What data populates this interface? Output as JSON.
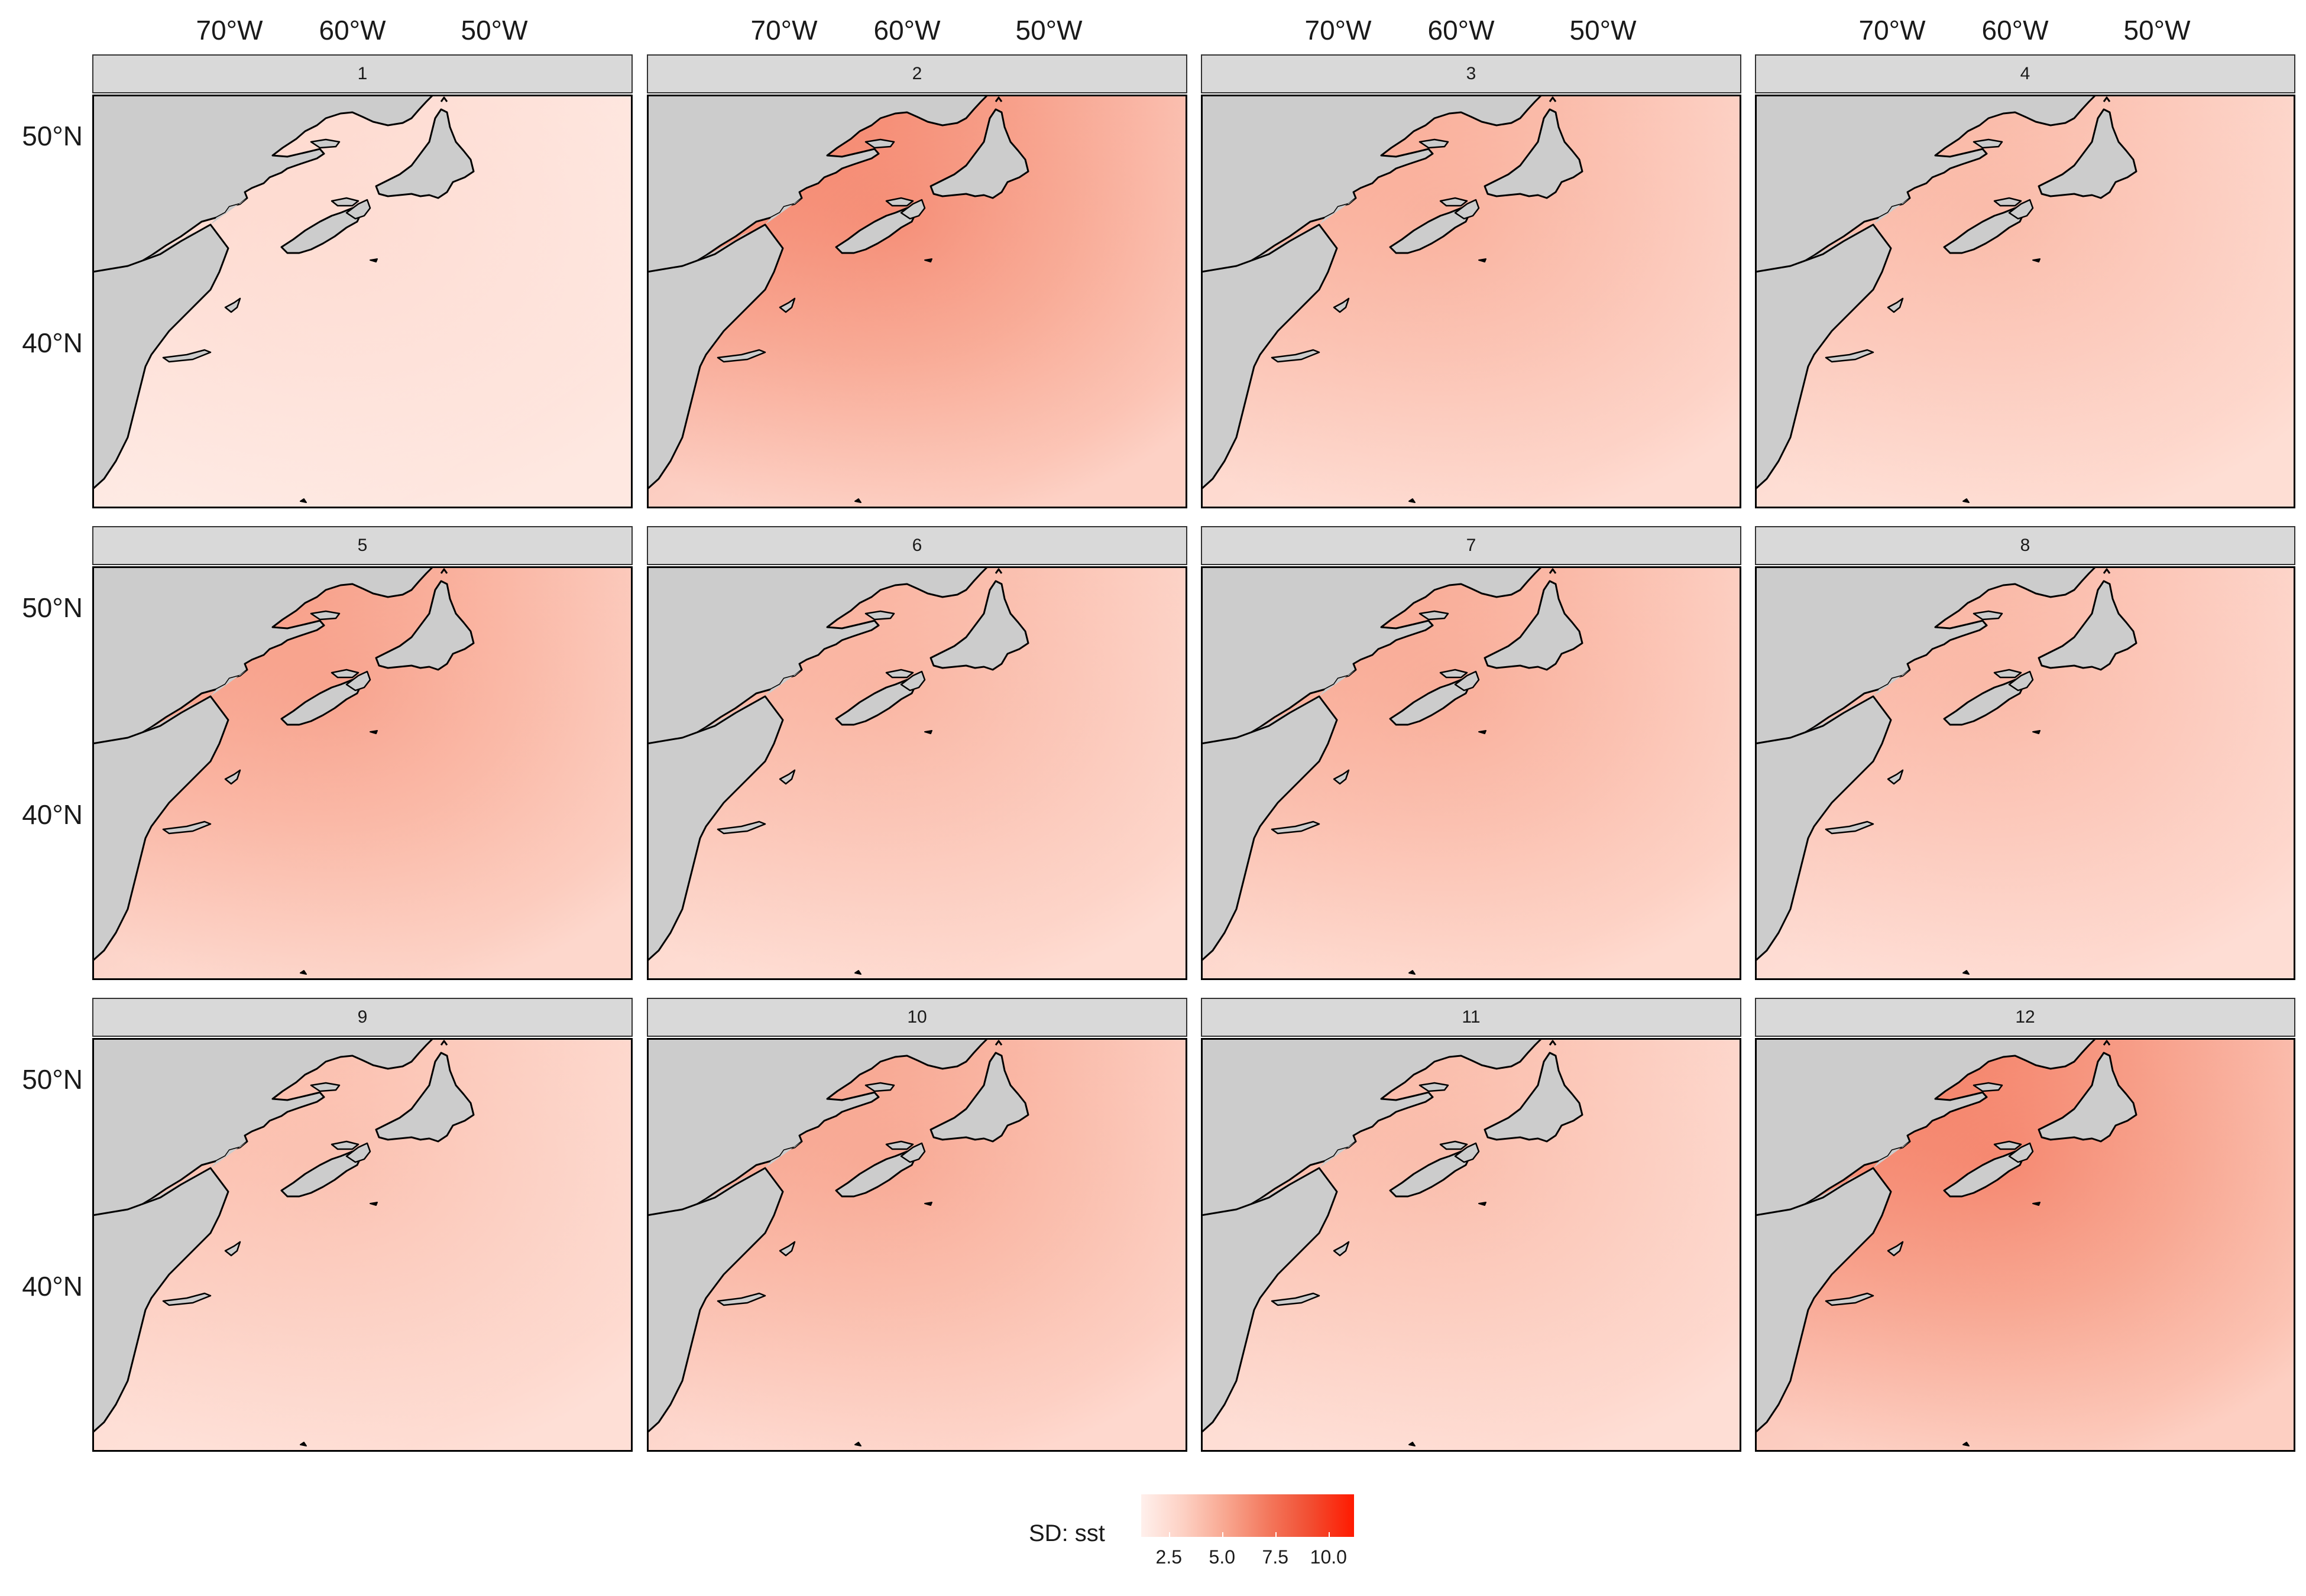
{
  "map": {
    "lon_ticks": [
      "70°W",
      "60°W",
      "50°W"
    ],
    "lat_ticks": [
      "50°N",
      "40°N"
    ],
    "panels": [
      {
        "label": "1",
        "intensity": 0.15
      },
      {
        "label": "2",
        "intensity": 0.55
      },
      {
        "label": "3",
        "intensity": 0.38
      },
      {
        "label": "4",
        "intensity": 0.33
      },
      {
        "label": "5",
        "intensity": 0.45
      },
      {
        "label": "6",
        "intensity": 0.36
      },
      {
        "label": "7",
        "intensity": 0.4
      },
      {
        "label": "8",
        "intensity": 0.34
      },
      {
        "label": "9",
        "intensity": 0.3
      },
      {
        "label": "10",
        "intensity": 0.42
      },
      {
        "label": "11",
        "intensity": 0.32
      },
      {
        "label": "12",
        "intensity": 0.58
      }
    ]
  },
  "legend": {
    "title": "SD: sst",
    "ticks": [
      "2.5",
      "5.0",
      "7.5",
      "10.0"
    ],
    "colors": [
      "#fff0ec",
      "#fdd0c3",
      "#f8a68f",
      "#f3775c",
      "#f24c30",
      "#ff1a00"
    ]
  },
  "colors": {
    "land": "#cccccc",
    "coast": "#000000",
    "strip": "#d9d9d9"
  }
}
